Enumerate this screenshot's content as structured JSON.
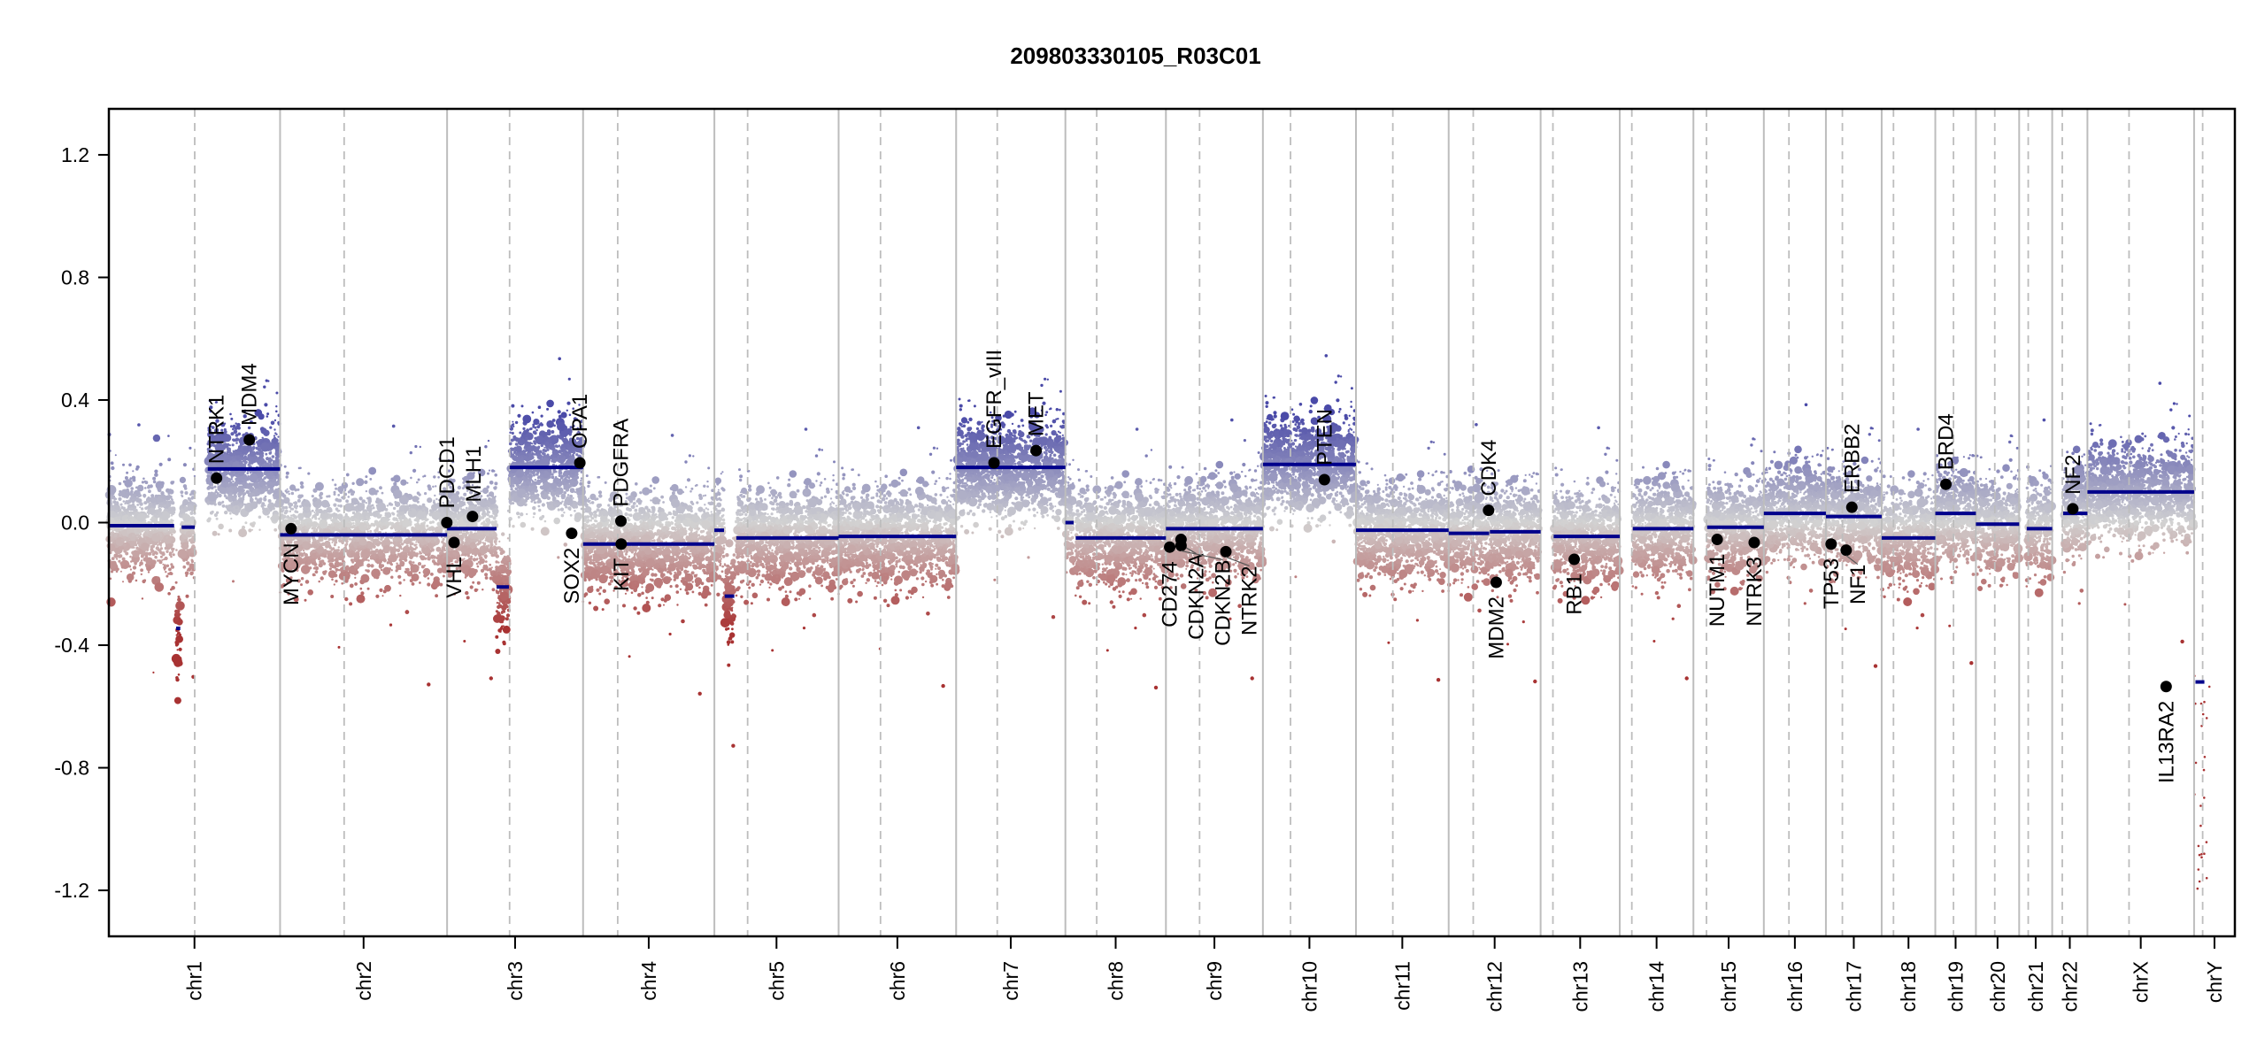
{
  "chart_data": {
    "type": "scatter",
    "title": "209803330105_R03C01",
    "xlabel": "",
    "ylabel": "",
    "ylim": [
      -1.35,
      1.35
    ],
    "yticks": [
      -1.2,
      -0.8,
      -0.4,
      0.0,
      0.4,
      0.8,
      1.2
    ],
    "ytick_labels": [
      "-1.2",
      "-0.8",
      "-0.4",
      "0.0",
      "0.4",
      "0.8",
      "1.2"
    ],
    "grid": false,
    "legend": "none",
    "colors": {
      "gain": "#4a4aa8",
      "neutral": "#d2d2d2",
      "loss": "#a83232",
      "segment": "#00008b",
      "gene": "#000000",
      "boundary": "#bdbdbd"
    },
    "chromosomes": [
      {
        "name": "chr1",
        "length_mb": 249.3,
        "centromere_mb": 125.0
      },
      {
        "name": "chr2",
        "length_mb": 243.2,
        "centromere_mb": 93.3
      },
      {
        "name": "chr3",
        "length_mb": 198.0,
        "centromere_mb": 91.0
      },
      {
        "name": "chr4",
        "length_mb": 191.2,
        "centromere_mb": 50.4
      },
      {
        "name": "chr5",
        "length_mb": 180.9,
        "centromere_mb": 48.4
      },
      {
        "name": "chr6",
        "length_mb": 171.1,
        "centromere_mb": 61.0
      },
      {
        "name": "chr7",
        "length_mb": 159.1,
        "centromere_mb": 59.9
      },
      {
        "name": "chr8",
        "length_mb": 146.4,
        "centromere_mb": 45.6
      },
      {
        "name": "chr9",
        "length_mb": 141.2,
        "centromere_mb": 49.0
      },
      {
        "name": "chr10",
        "length_mb": 135.5,
        "centromere_mb": 40.2
      },
      {
        "name": "chr11",
        "length_mb": 135.0,
        "centromere_mb": 53.7
      },
      {
        "name": "chr12",
        "length_mb": 133.9,
        "centromere_mb": 35.8
      },
      {
        "name": "chr13",
        "length_mb": 115.2,
        "centromere_mb": 17.9
      },
      {
        "name": "chr14",
        "length_mb": 107.3,
        "centromere_mb": 17.6
      },
      {
        "name": "chr15",
        "length_mb": 102.5,
        "centromere_mb": 19.0
      },
      {
        "name": "chr16",
        "length_mb": 90.4,
        "centromere_mb": 36.6
      },
      {
        "name": "chr17",
        "length_mb": 81.2,
        "centromere_mb": 24.0
      },
      {
        "name": "chr18",
        "length_mb": 78.1,
        "centromere_mb": 17.2
      },
      {
        "name": "chr19",
        "length_mb": 59.1,
        "centromere_mb": 26.5
      },
      {
        "name": "chr20",
        "length_mb": 63.0,
        "centromere_mb": 27.5
      },
      {
        "name": "chr21",
        "length_mb": 48.1,
        "centromere_mb": 13.2
      },
      {
        "name": "chr22",
        "length_mb": 51.3,
        "centromere_mb": 14.7
      },
      {
        "name": "chrX",
        "length_mb": 155.3,
        "centromere_mb": 60.6
      },
      {
        "name": "chrY",
        "length_mb": 59.4,
        "centromere_mb": 12.5
      }
    ],
    "segments": [
      {
        "chr": "chr1",
        "start": 0,
        "end": 95,
        "value": -0.01
      },
      {
        "chr": "chr1",
        "start": 98,
        "end": 104,
        "value": -0.345
      },
      {
        "chr": "chr1",
        "start": 106,
        "end": 125,
        "value": -0.015
      },
      {
        "chr": "chr1",
        "start": 144,
        "end": 249.3,
        "value": 0.175
      },
      {
        "chr": "chr2",
        "start": 0,
        "end": 243.2,
        "value": -0.04
      },
      {
        "chr": "chr3",
        "start": 0,
        "end": 72,
        "value": -0.02
      },
      {
        "chr": "chr3",
        "start": 72,
        "end": 90,
        "value": -0.21
      },
      {
        "chr": "chr3",
        "start": 91,
        "end": 198,
        "value": 0.18
      },
      {
        "chr": "chr4",
        "start": 0,
        "end": 191.2,
        "value": -0.07
      },
      {
        "chr": "chr5",
        "start": 0,
        "end": 14,
        "value": -0.025
      },
      {
        "chr": "chr5",
        "start": 15,
        "end": 29,
        "value": -0.24
      },
      {
        "chr": "chr5",
        "start": 32,
        "end": 180.9,
        "value": -0.05
      },
      {
        "chr": "chr6",
        "start": 0,
        "end": 171.1,
        "value": -0.045
      },
      {
        "chr": "chr7",
        "start": 0,
        "end": 159.1,
        "value": 0.18
      },
      {
        "chr": "chr8",
        "start": 0,
        "end": 12,
        "value": 0.0
      },
      {
        "chr": "chr8",
        "start": 15,
        "end": 146.4,
        "value": -0.05
      },
      {
        "chr": "chr9",
        "start": 0,
        "end": 141.2,
        "value": -0.02
      },
      {
        "chr": "chr10",
        "start": 0,
        "end": 135.5,
        "value": 0.19
      },
      {
        "chr": "chr11",
        "start": 0,
        "end": 135.0,
        "value": -0.025
      },
      {
        "chr": "chr12",
        "start": 0,
        "end": 59,
        "value": -0.035
      },
      {
        "chr": "chr12",
        "start": 60,
        "end": 133.9,
        "value": -0.03
      },
      {
        "chr": "chr13",
        "start": 19,
        "end": 115.2,
        "value": -0.045
      },
      {
        "chr": "chr14",
        "start": 19,
        "end": 107.3,
        "value": -0.02
      },
      {
        "chr": "chr15",
        "start": 20,
        "end": 102.5,
        "value": -0.015
      },
      {
        "chr": "chr16",
        "start": 0,
        "end": 90.4,
        "value": 0.03
      },
      {
        "chr": "chr17",
        "start": 0,
        "end": 81.2,
        "value": 0.02
      },
      {
        "chr": "chr18",
        "start": 0,
        "end": 78.1,
        "value": -0.05
      },
      {
        "chr": "chr19",
        "start": 0,
        "end": 59.1,
        "value": 0.03
      },
      {
        "chr": "chr20",
        "start": 0,
        "end": 63.0,
        "value": -0.005
      },
      {
        "chr": "chr21",
        "start": 11,
        "end": 48.1,
        "value": -0.02
      },
      {
        "chr": "chr22",
        "start": 16,
        "end": 51.3,
        "value": 0.03
      },
      {
        "chr": "chrX",
        "start": 0,
        "end": 155.3,
        "value": 0.1
      },
      {
        "chr": "chrY",
        "start": 2,
        "end": 15,
        "value": -0.52
      }
    ],
    "genes": [
      {
        "name": "NTRK1",
        "chr": "chr1",
        "pos": 156.8,
        "value": 0.145
      },
      {
        "name": "MDM4",
        "chr": "chr1",
        "pos": 204.5,
        "value": 0.27
      },
      {
        "name": "MYCN",
        "chr": "chr2",
        "pos": 16.0,
        "value": -0.02
      },
      {
        "name": "PDCD1",
        "chr": "chr2",
        "pos": 242.8,
        "value": 0.0
      },
      {
        "name": "VHL",
        "chr": "chr3",
        "pos": 10.2,
        "value": -0.065
      },
      {
        "name": "MLH1",
        "chr": "chr3",
        "pos": 37.0,
        "value": 0.02
      },
      {
        "name": "SOX2",
        "chr": "chr3",
        "pos": 181.4,
        "value": -0.035
      },
      {
        "name": "OPA1",
        "chr": "chr3",
        "pos": 193.3,
        "value": 0.195
      },
      {
        "name": "PDGFRA",
        "chr": "chr4",
        "pos": 55.1,
        "value": 0.005
      },
      {
        "name": "KIT",
        "chr": "chr4",
        "pos": 55.5,
        "value": -0.07
      },
      {
        "name": "EGFR_vIII",
        "chr": "chr7",
        "pos": 55.2,
        "value": 0.195
      },
      {
        "name": "MET",
        "chr": "chr7",
        "pos": 116.4,
        "value": 0.235
      },
      {
        "name": "CD274",
        "chr": "chr9",
        "pos": 5.5,
        "value": -0.08
      },
      {
        "name": "CDKN2A",
        "chr": "chr9",
        "pos": 21.97,
        "value": -0.055
      },
      {
        "name": "CDKN2B",
        "chr": "chr9",
        "pos": 22.0,
        "value": -0.075
      },
      {
        "name": "NTRK2",
        "chr": "chr9",
        "pos": 87.3,
        "value": -0.095
      },
      {
        "name": "PTEN",
        "chr": "chr10",
        "pos": 89.6,
        "value": 0.14
      },
      {
        "name": "CDK4",
        "chr": "chr12",
        "pos": 58.1,
        "value": 0.04
      },
      {
        "name": "MDM2",
        "chr": "chr12",
        "pos": 69.2,
        "value": -0.195
      },
      {
        "name": "RB1",
        "chr": "chr13",
        "pos": 48.9,
        "value": -0.12
      },
      {
        "name": "NUTM1",
        "chr": "chr15",
        "pos": 34.6,
        "value": -0.055
      },
      {
        "name": "NTRK3",
        "chr": "chr15",
        "pos": 88.5,
        "value": -0.065
      },
      {
        "name": "TP53",
        "chr": "chr17",
        "pos": 7.6,
        "value": -0.07
      },
      {
        "name": "NF1",
        "chr": "chr17",
        "pos": 29.5,
        "value": -0.09
      },
      {
        "name": "ERBB2",
        "chr": "chr17",
        "pos": 37.8,
        "value": 0.05
      },
      {
        "name": "BRD4",
        "chr": "chr19",
        "pos": 15.4,
        "value": 0.125
      },
      {
        "name": "NF2",
        "chr": "chr22",
        "pos": 30.0,
        "value": 0.045
      },
      {
        "name": "IL13RA2",
        "chr": "chrX",
        "pos": 114.6,
        "value": -0.535
      }
    ]
  }
}
